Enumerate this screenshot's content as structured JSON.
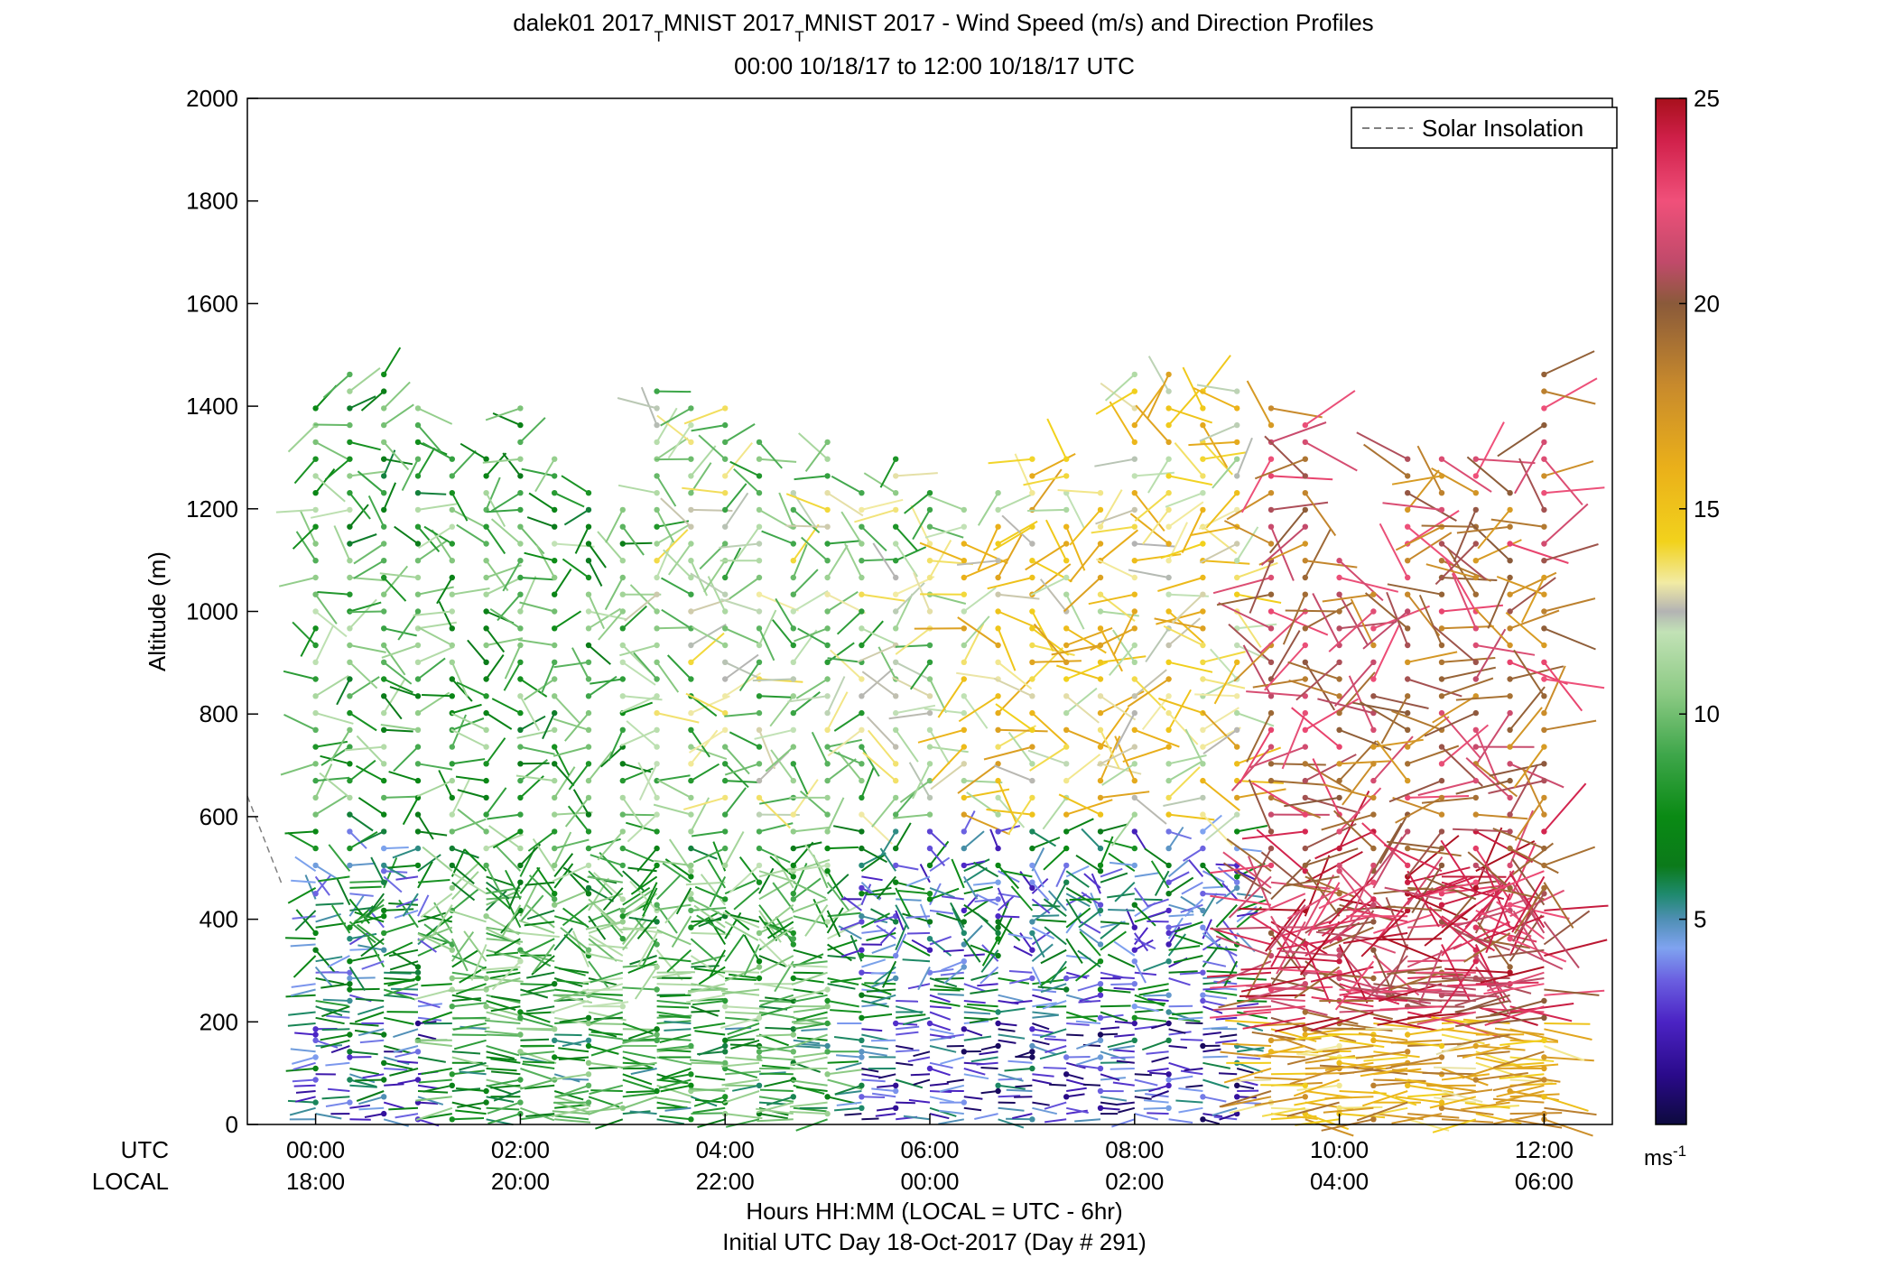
{
  "chart_data": {
    "type": "scatter",
    "title_line1": "dalek01 2017",
    "title_sub1": "T",
    "title_line1b": "MNIST 2017",
    "title_sub2": "T",
    "title_line1c": "MNIST 2017 - Wind Speed (m/s) and Direction Profiles",
    "title_line2": "00:00 10/18/17 to 12:00 10/18/17  UTC",
    "ylabel": "Altitude (m)",
    "ylim": [
      0,
      2000
    ],
    "y_ticks": [
      "0",
      "200",
      "400",
      "600",
      "800",
      "1000",
      "1200",
      "1400",
      "1600",
      "1800",
      "2000"
    ],
    "xlim": [
      "-00:40",
      "12:40"
    ],
    "x_ticks_utc": [
      "00:00",
      "02:00",
      "04:00",
      "06:00",
      "08:00",
      "10:00",
      "12:00"
    ],
    "x_ticks_local": [
      "18:00",
      "20:00",
      "22:00",
      "00:00",
      "02:00",
      "04:00",
      "06:00"
    ],
    "row_label_utc": "UTC",
    "row_label_local": "LOCAL",
    "xlabel_line1": "Hours HH:MM  (LOCAL = UTC - 6hr)",
    "xlabel_line2": "Initial UTC Day 18-Oct-2017 (Day # 291)",
    "legend": {
      "entry": "Solar Insolation",
      "placement": "top-right"
    },
    "colorbar": {
      "range": [
        0,
        25
      ],
      "ticks": [
        "5",
        "10",
        "15",
        "20",
        "25"
      ],
      "unit_base": "ms",
      "unit_exp": "-1"
    },
    "profile_times_utc": [
      "00:00",
      "00:20",
      "00:40",
      "01:00",
      "01:20",
      "01:40",
      "02:00",
      "02:20",
      "02:40",
      "03:00",
      "03:20",
      "03:40",
      "04:00",
      "04:20",
      "04:40",
      "05:00",
      "05:20",
      "05:40",
      "06:00",
      "06:20",
      "06:40",
      "07:00",
      "07:20",
      "07:40",
      "08:00",
      "08:20",
      "08:40",
      "09:00",
      "09:20",
      "09:40",
      "10:00",
      "10:20",
      "10:40",
      "11:00",
      "11:20",
      "11:40",
      "12:00"
    ],
    "profile_top_altitude_m": [
      1420,
      1480,
      1480,
      1420,
      1320,
      1300,
      1420,
      1300,
      1260,
      1200,
      1440,
      1400,
      1420,
      1340,
      1240,
      1340,
      1260,
      1300,
      1250,
      1200,
      1240,
      1300,
      1300,
      1260,
      1480,
      1480,
      1440,
      1460,
      1400,
      1380,
      1100,
      1050,
      1300,
      1300,
      1300,
      1260,
      1480
    ],
    "speed_bands": [
      {
        "alt_range_m": [
          0,
          200
        ],
        "speed_ms_by_period": {
          "00:00-01:00": 4,
          "01:00-05:00": 8,
          "05:00-09:00": 3,
          "09:00-12:00": 16
        }
      },
      {
        "alt_range_m": [
          200,
          600
        ],
        "speed_ms_by_period": {
          "00:00-01:00": 6,
          "01:00-05:00": 9,
          "05:00-09:00": 5,
          "09:00-12:00": 22
        }
      },
      {
        "alt_range_m": [
          600,
          1500
        ],
        "speed_ms_by_period": {
          "00:00-03:00": 9,
          "03:00-06:00": 11,
          "06:00-09:00": 14,
          "09:00-12:00": 20
        }
      }
    ],
    "solar_insolation_curve": {
      "start": [
        "-00:40",
        640
      ],
      "end": [
        "-00:20",
        470
      ]
    }
  }
}
